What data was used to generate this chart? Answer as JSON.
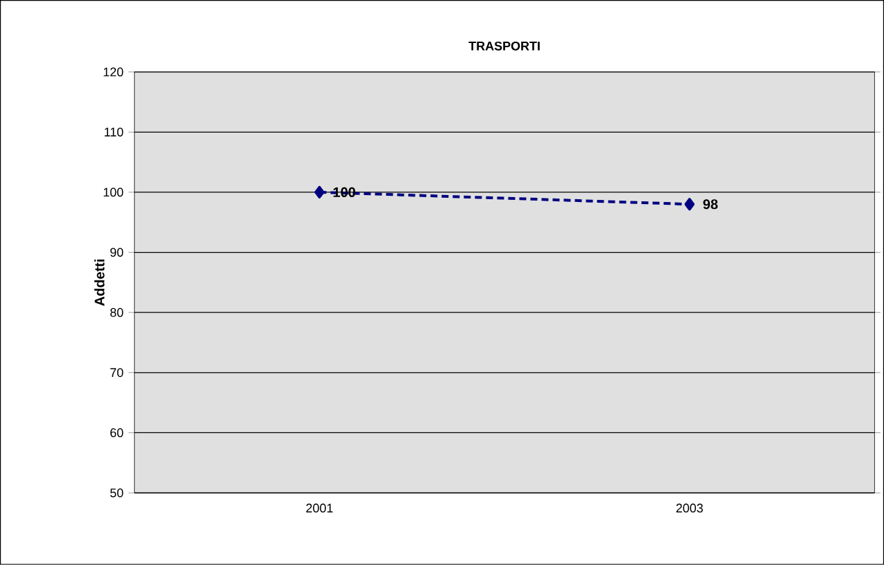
{
  "chart_data": {
    "type": "line",
    "title": "TRASPORTI",
    "ylabel": "Addetti",
    "categories": [
      "2001",
      "2003"
    ],
    "series": [
      {
        "color": "#000080",
        "values": [
          100,
          98
        ]
      }
    ],
    "ylim": [
      50,
      120
    ],
    "yticks": [
      50,
      60,
      70,
      80,
      90,
      100,
      110,
      120
    ],
    "grid": "y",
    "marker": "diamond",
    "line_style": "dashed",
    "data_labels": true
  }
}
